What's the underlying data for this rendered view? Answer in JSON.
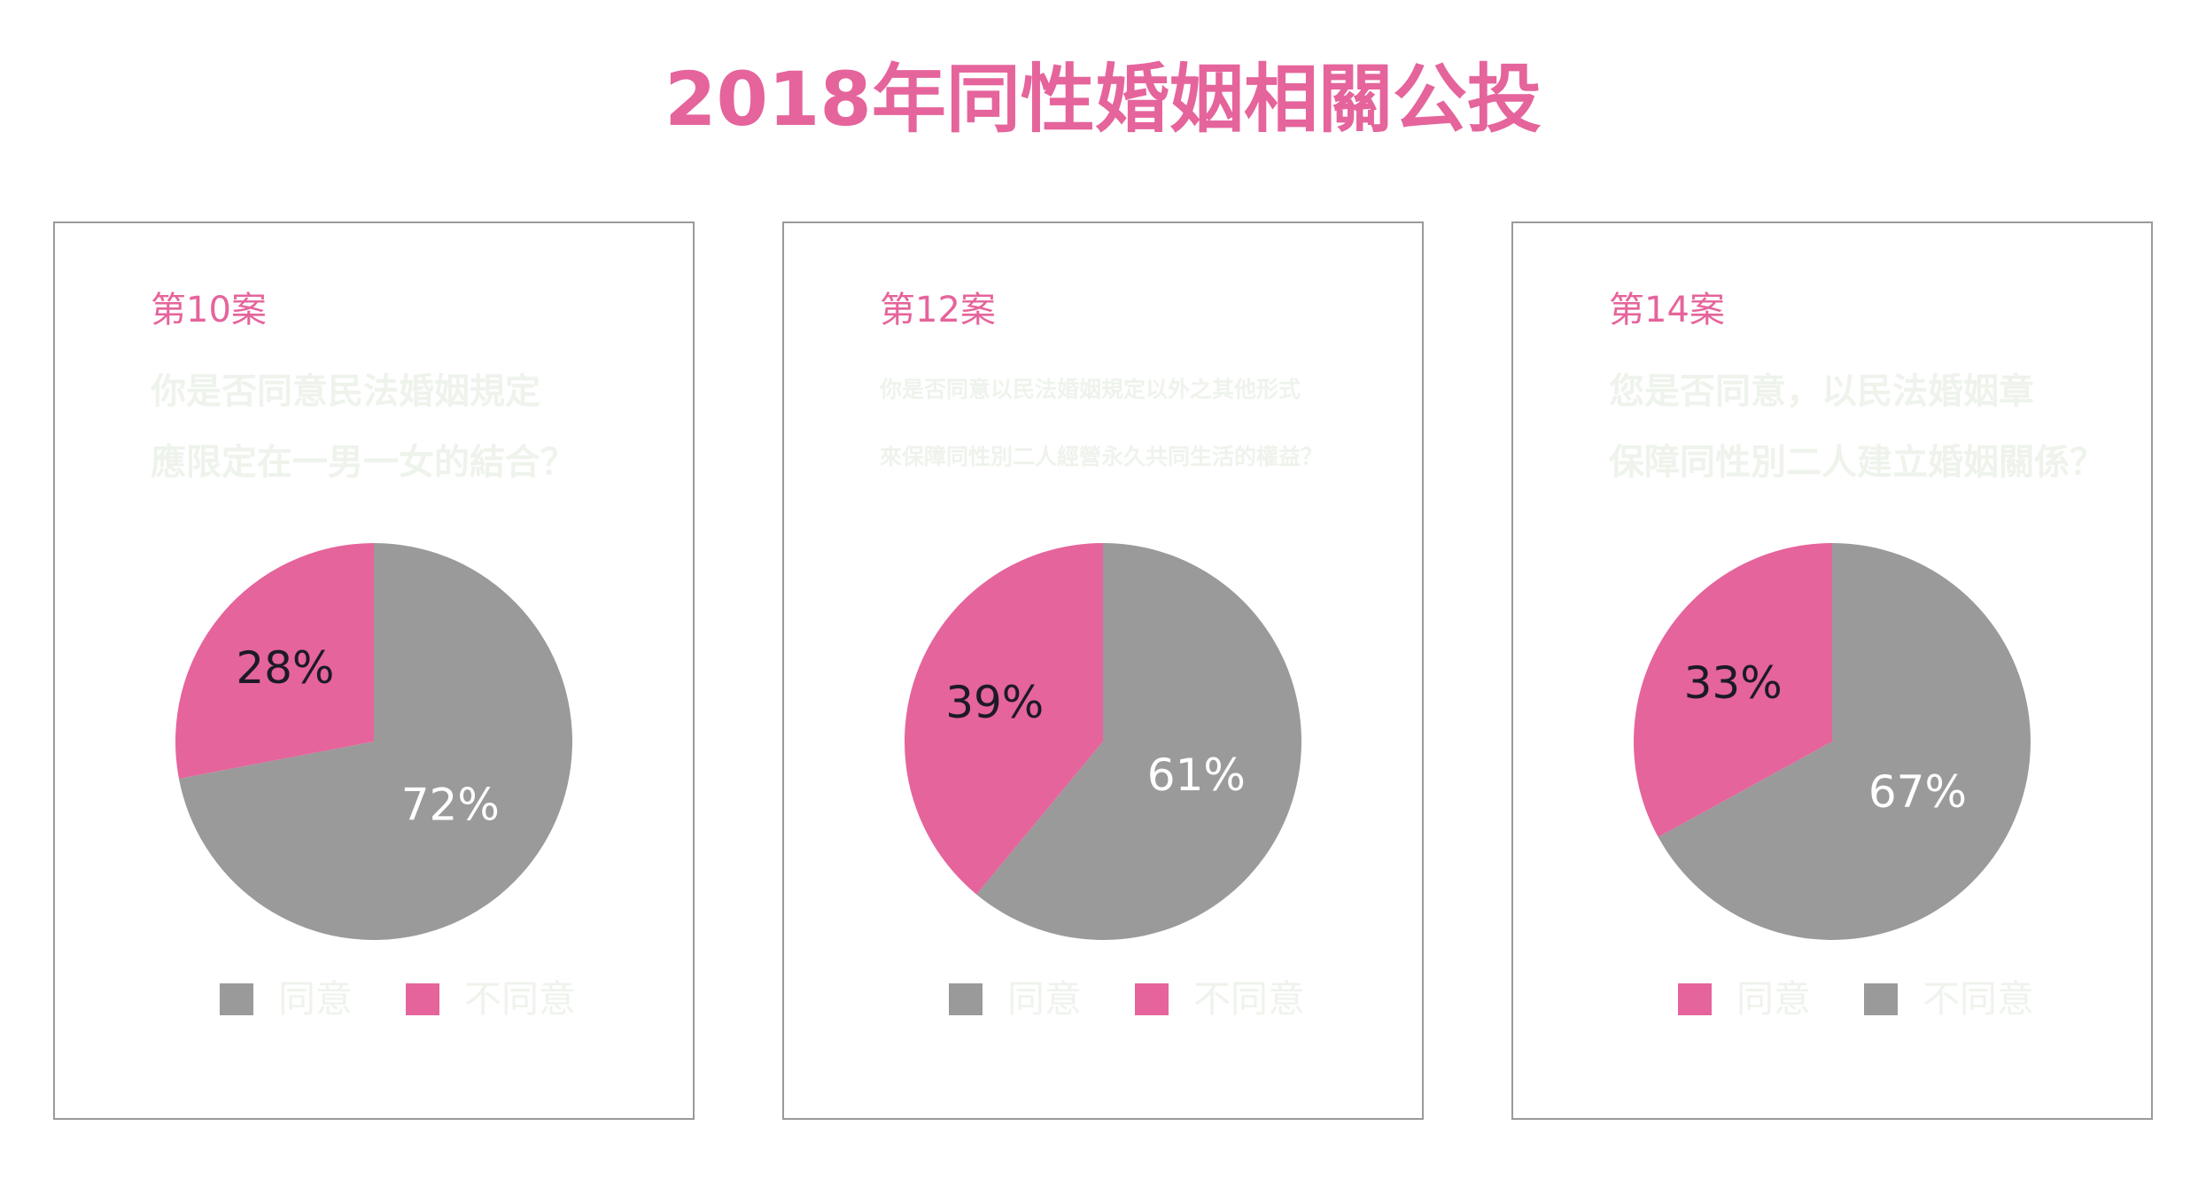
{
  "title": "2018年同性婚姻相關公投",
  "colors": {
    "accent": "#e5649b",
    "gray": "#9a9a9a",
    "question_text": "#eef3ec",
    "dark_label": "#1c1a25",
    "light_label": "#ffffff"
  },
  "chart_data": [
    {
      "type": "pie",
      "title": "第10案",
      "subtitle": [
        "你是否同意民法婚姻規定",
        "應限定在一男一女的結合？"
      ],
      "legend": [
        {
          "label": "同意",
          "color": "#9a9a9a"
        },
        {
          "label": "不同意",
          "color": "#e5649b"
        }
      ],
      "slices": [
        {
          "label": "同意",
          "value": 72,
          "value_label": "72%",
          "color": "#9a9a9a"
        },
        {
          "label": "不同意",
          "value": 28,
          "value_label": "28%",
          "color": "#e5649b"
        }
      ]
    },
    {
      "type": "pie",
      "title": "第12案",
      "subtitle": [
        "你是否同意以民法婚姻規定以外之其他形式",
        "來保障同性別二人經營永久共同生活的權益？"
      ],
      "legend": [
        {
          "label": "同意",
          "color": "#9a9a9a"
        },
        {
          "label": "不同意",
          "color": "#e5649b"
        }
      ],
      "slices": [
        {
          "label": "同意",
          "value": 61,
          "value_label": "61%",
          "color": "#9a9a9a"
        },
        {
          "label": "不同意",
          "value": 39,
          "value_label": "39%",
          "color": "#e5649b"
        }
      ]
    },
    {
      "type": "pie",
      "title": "第14案",
      "subtitle": [
        "您是否同意，以民法婚姻章",
        "保障同性別二人建立婚姻關係？"
      ],
      "legend": [
        {
          "label": "同意",
          "color": "#e5649b"
        },
        {
          "label": "不同意",
          "color": "#9a9a9a"
        }
      ],
      "slices": [
        {
          "label": "不同意",
          "value": 67,
          "value_label": "67%",
          "color": "#9a9a9a"
        },
        {
          "label": "同意",
          "value": 33,
          "value_label": "33%",
          "color": "#e5649b"
        }
      ]
    }
  ]
}
